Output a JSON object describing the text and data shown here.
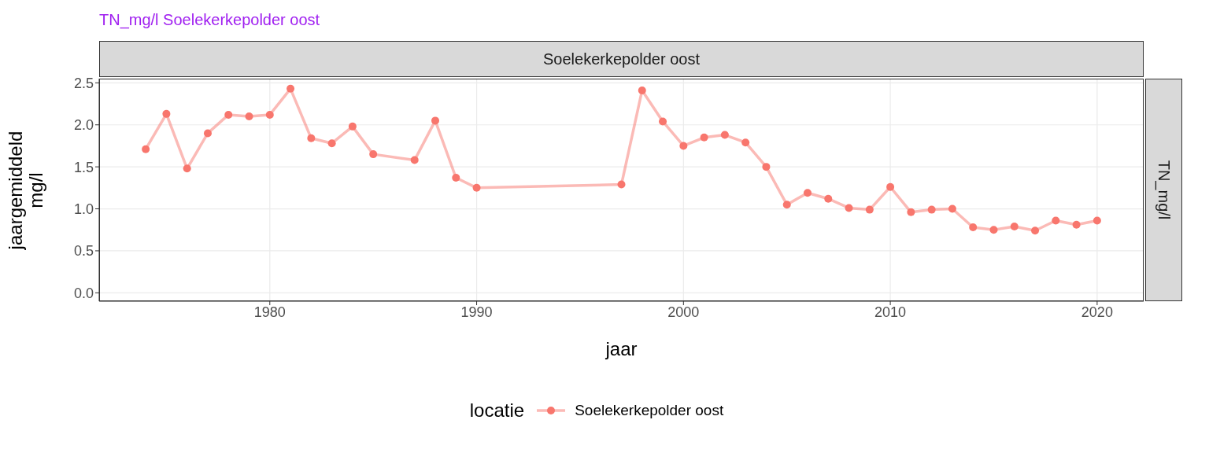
{
  "chart_data": {
    "type": "line",
    "title": "TN_mg/l Soelekerkepolder oost",
    "xlabel": "jaar",
    "ylabel": "jaargemiddeld\nmg/l",
    "legend_title": "locatie",
    "annotations": [
      "Soelekerkepolder oost",
      "TN_mg/l"
    ],
    "x": [
      1974,
      1975,
      1976,
      1977,
      1978,
      1979,
      1980,
      1981,
      1982,
      1983,
      1984,
      1985,
      1987,
      1988,
      1989,
      1990,
      1997,
      1998,
      1999,
      2000,
      2001,
      2002,
      2003,
      2004,
      2005,
      2006,
      2007,
      2008,
      2009,
      2010,
      2011,
      2012,
      2013,
      2014,
      2015,
      2016,
      2017,
      2018,
      2019,
      2020
    ],
    "series": [
      {
        "name": "Soelekerkepolder oost",
        "color": "#f8766d",
        "values": [
          1.71,
          2.13,
          1.48,
          1.9,
          2.12,
          2.1,
          2.12,
          2.43,
          1.84,
          1.78,
          1.98,
          1.65,
          1.58,
          2.05,
          1.37,
          1.25,
          1.29,
          2.41,
          2.04,
          1.75,
          1.85,
          1.88,
          1.79,
          1.5,
          1.05,
          1.19,
          1.12,
          1.01,
          0.99,
          1.26,
          0.96,
          0.99,
          1.0,
          0.78,
          0.75,
          0.79,
          0.74,
          0.86,
          0.81,
          0.86
        ]
      }
    ],
    "xlim": [
      1971.75,
      2022.25
    ],
    "xticks": [
      1980,
      1990,
      2000,
      2010,
      2020
    ],
    "ylim": [
      -0.1,
      2.55
    ],
    "yticks": [
      {
        "value": 0,
        "label": "0.0"
      },
      {
        "value": 0.5,
        "label": "0.5"
      },
      {
        "value": 1,
        "label": "1.0"
      },
      {
        "value": 1.5,
        "label": "1.5"
      },
      {
        "value": 2,
        "label": "2.0"
      },
      {
        "value": 2.5,
        "label": "2.5"
      }
    ],
    "grid": true,
    "legend": "bottom",
    "marker": "circle",
    "line_style": "solid"
  }
}
